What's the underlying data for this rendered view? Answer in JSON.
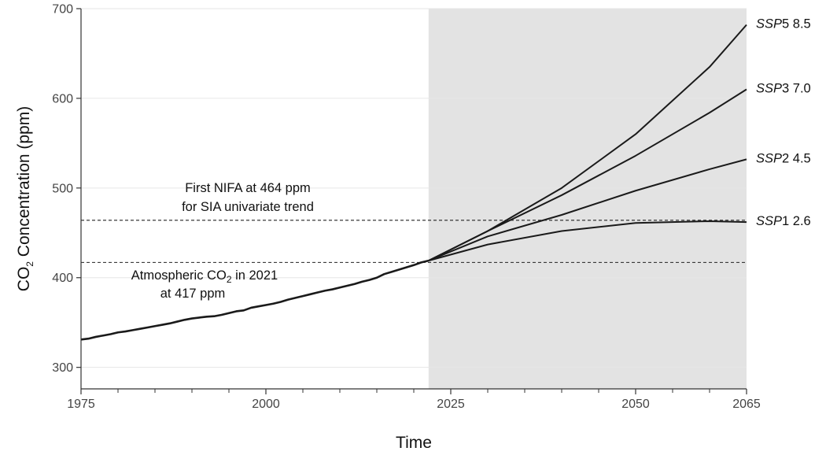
{
  "chart_data": {
    "type": "line",
    "xlabel": "Time",
    "ylabel": {
      "pre": "CO",
      "sub": "2",
      "post": " Concentration (ppm)"
    },
    "xlim": [
      1975,
      2065
    ],
    "ylim": [
      276,
      700
    ],
    "x_ticks": [
      1975,
      2000,
      2025,
      2050,
      2065
    ],
    "y_ticks": [
      300,
      400,
      500,
      600,
      700
    ],
    "x_minor_step": 5,
    "grid": {
      "horizontal": true,
      "vertical": false
    },
    "shaded_region": {
      "from": 2022,
      "to": 2065,
      "color": "#e3e3e3"
    },
    "reference_lines": [
      {
        "y": 464,
        "style": "dashed"
      },
      {
        "y": 417,
        "style": "dashed"
      }
    ],
    "annotations": {
      "nifa": {
        "line1": "First NIFA at 464 ppm",
        "line2": "for SIA univariate trend"
      },
      "atm": {
        "line1_pre": "Atmospheric CO",
        "line1_sub": "2",
        "line1_post": " in 2021",
        "line2": "at 417 ppm"
      }
    },
    "historical": {
      "x": [
        1975,
        1976,
        1977,
        1978,
        1979,
        1980,
        1981,
        1982,
        1983,
        1984,
        1985,
        1986,
        1987,
        1988,
        1989,
        1990,
        1991,
        1992,
        1993,
        1994,
        1995,
        1996,
        1997,
        1998,
        1999,
        2000,
        2001,
        2002,
        2003,
        2004,
        2005,
        2006,
        2007,
        2008,
        2009,
        2010,
        2011,
        2012,
        2013,
        2014,
        2015,
        2016,
        2017,
        2018,
        2019,
        2020,
        2021,
        2022
      ],
      "y": [
        331,
        332,
        334,
        335.5,
        337,
        339,
        340,
        341.5,
        343,
        344.5,
        346,
        347.5,
        349,
        351,
        353,
        354.5,
        355.5,
        356.5,
        357,
        358.5,
        360.5,
        362.5,
        363.5,
        366.5,
        368,
        369.5,
        371,
        373,
        375.5,
        377.5,
        379.5,
        381.5,
        383.5,
        385.5,
        387,
        389,
        391,
        393,
        395.5,
        397.5,
        400,
        404,
        406.5,
        409,
        411.5,
        414,
        417,
        419
      ]
    },
    "series": [
      {
        "name": "8.5",
        "label_italic": "SSP",
        "label_num": "5",
        "x": [
          2022,
          2030,
          2040,
          2050,
          2060,
          2065
        ],
        "y": [
          419,
          452,
          500,
          560,
          635,
          682
        ]
      },
      {
        "name": "7.0",
        "label_italic": "SSP",
        "label_num": "3",
        "x": [
          2022,
          2030,
          2040,
          2050,
          2060,
          2065
        ],
        "y": [
          419,
          452,
          492,
          536,
          584,
          610
        ]
      },
      {
        "name": "4.5",
        "label_italic": "SSP",
        "label_num": "2",
        "x": [
          2022,
          2030,
          2040,
          2050,
          2060,
          2065
        ],
        "y": [
          419,
          446,
          470,
          497,
          521,
          532
        ]
      },
      {
        "name": "2.6",
        "label_italic": "SSP",
        "label_num": "1",
        "x": [
          2022,
          2030,
          2040,
          2050,
          2060,
          2065
        ],
        "y": [
          419,
          437,
          452,
          461,
          463,
          462
        ]
      }
    ],
    "colors": {
      "line": "#1a1a1a",
      "grid": "#e6e6e6",
      "shade": "#e3e3e3",
      "axis": "#333333"
    }
  }
}
